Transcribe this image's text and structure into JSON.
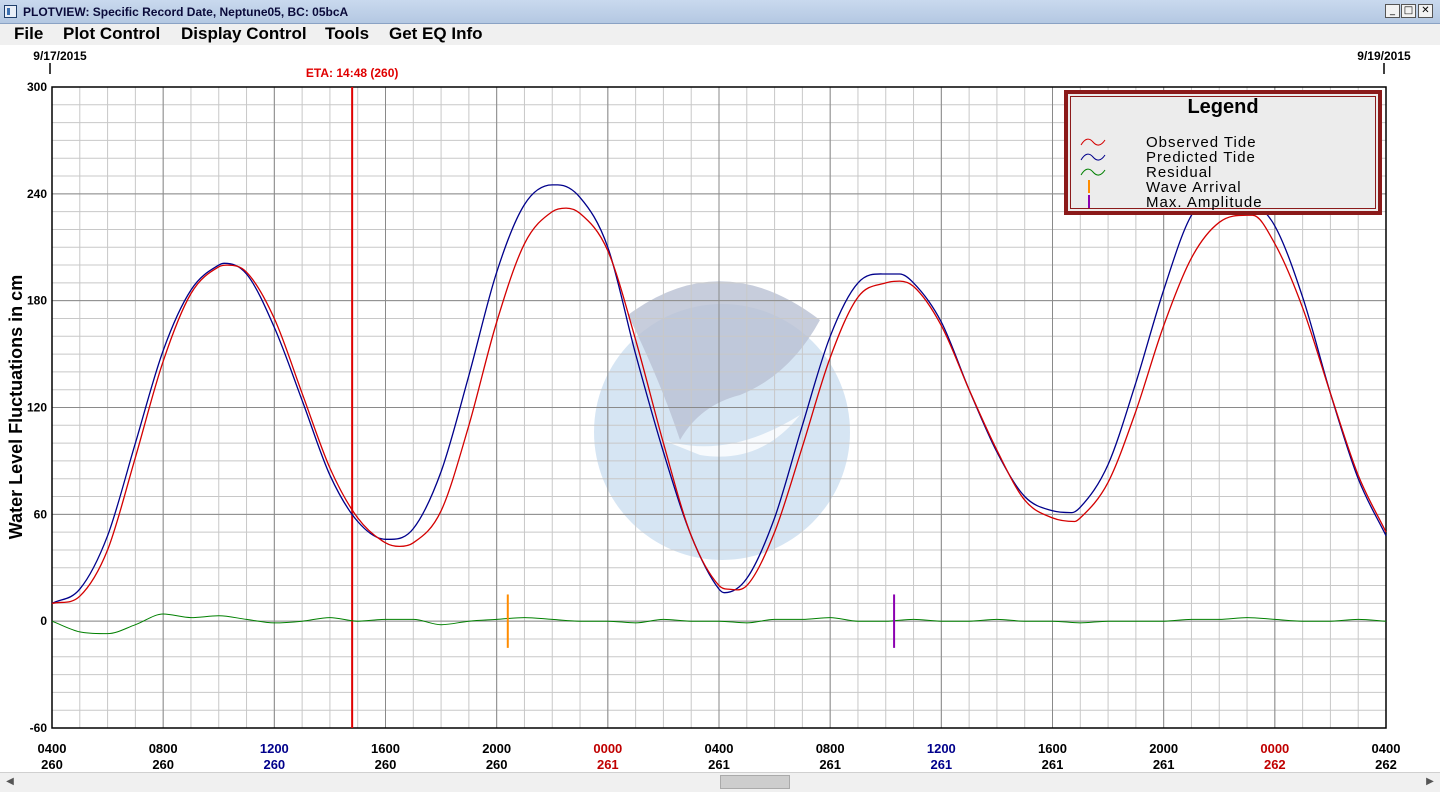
{
  "window": {
    "title": "PLOTVIEW: Specific Record Date, Neptune05, BC: 05bcA",
    "minimize": "_",
    "maximize": "□",
    "close": "✕"
  },
  "menu": [
    "File",
    "Plot Control",
    "Display Control",
    "Tools",
    "Get EQ Info"
  ],
  "scrollbar": {
    "left_arrow": "◀",
    "right_arrow": "▶"
  },
  "colors": {
    "observed": "#d40000",
    "predicted": "#00008b",
    "residual": "#008000",
    "wave_arrival": "#ff8c00",
    "max_amplitude": "#8b00b0",
    "eta_line": "#e00000",
    "day_label_blue": "#00008b",
    "day_label_red": "#c00000",
    "legend_border": "#8b1a1a"
  },
  "chart_data": {
    "type": "line",
    "ylabel": "Water Level Fluctuations in cm",
    "ylim": [
      -60,
      300
    ],
    "yticks": [
      -60,
      0,
      60,
      120,
      180,
      240,
      300
    ],
    "x_unit": "hours from 0400 on day 260",
    "xlim": [
      0,
      48
    ],
    "date_start": "9/17/2015",
    "date_end": "9/19/2015",
    "eta_label": "ETA: 14:48 (260)",
    "eta_x": 10.8,
    "grid": true,
    "xticks": [
      {
        "x": 0,
        "time": "0400",
        "day": "260",
        "color": "black"
      },
      {
        "x": 4,
        "time": "0800",
        "day": "260",
        "color": "black"
      },
      {
        "x": 8,
        "time": "1200",
        "day": "260",
        "color": "blue"
      },
      {
        "x": 12,
        "time": "1600",
        "day": "260",
        "color": "black"
      },
      {
        "x": 16,
        "time": "2000",
        "day": "260",
        "color": "black"
      },
      {
        "x": 20,
        "time": "0000",
        "day": "261",
        "color": "red"
      },
      {
        "x": 24,
        "time": "0400",
        "day": "261",
        "color": "black"
      },
      {
        "x": 28,
        "time": "0800",
        "day": "261",
        "color": "black"
      },
      {
        "x": 32,
        "time": "1200",
        "day": "261",
        "color": "blue"
      },
      {
        "x": 36,
        "time": "1600",
        "day": "261",
        "color": "black"
      },
      {
        "x": 40,
        "time": "2000",
        "day": "261",
        "color": "black"
      },
      {
        "x": 44,
        "time": "0000",
        "day": "262",
        "color": "red"
      },
      {
        "x": 48,
        "time": "0400",
        "day": "262",
        "color": "black"
      }
    ],
    "legend": {
      "title": "Legend",
      "position": "top-right",
      "entries": [
        "Observed Tide",
        "Predicted Tide",
        "Residual",
        "Wave Arrival",
        "Max. Amplitude"
      ]
    },
    "series": [
      {
        "name": "Predicted Tide",
        "x": [
          0,
          1,
          2,
          3,
          4,
          5,
          6,
          6.2,
          7,
          8,
          9,
          10,
          11,
          12,
          12.2,
          13,
          14,
          15,
          16,
          17,
          18,
          18.2,
          19,
          20,
          21,
          22,
          23,
          24,
          24.2,
          25,
          26,
          27,
          28,
          29,
          30,
          30.5,
          31,
          32,
          33,
          34,
          35,
          36,
          36.7,
          37,
          38,
          39,
          40,
          41,
          42,
          42.8,
          43,
          44,
          45,
          46,
          47,
          48
        ],
        "values": [
          10,
          18,
          48,
          100,
          152,
          186,
          200,
          201,
          195,
          165,
          124,
          82,
          56,
          46,
          46,
          52,
          84,
          138,
          196,
          234,
          245,
          245,
          238,
          210,
          150,
          95,
          48,
          18,
          16,
          24,
          58,
          110,
          160,
          190,
          195,
          195,
          190,
          168,
          130,
          95,
          70,
          62,
          61,
          64,
          88,
          134,
          186,
          228,
          240,
          240,
          238,
          222,
          182,
          128,
          80,
          48
        ]
      },
      {
        "name": "Observed Tide",
        "x": [
          0,
          1,
          2,
          3,
          4,
          5,
          6,
          6.3,
          7,
          8,
          9,
          10,
          11,
          12,
          12.5,
          13,
          14,
          15,
          16,
          17,
          18,
          18.5,
          19,
          20,
          21,
          22,
          23,
          24,
          24.3,
          25,
          26,
          27,
          28,
          29,
          30,
          30.5,
          31,
          32,
          33,
          34,
          35,
          36,
          36.8,
          37,
          38,
          39,
          40,
          41,
          42,
          43,
          43.2,
          44,
          45,
          46,
          47,
          48
        ],
        "values": [
          10,
          14,
          40,
          92,
          146,
          184,
          199,
          200,
          196,
          170,
          128,
          86,
          58,
          44,
          42,
          44,
          62,
          110,
          168,
          212,
          230,
          232,
          229,
          208,
          158,
          100,
          48,
          20,
          18,
          20,
          50,
          98,
          148,
          182,
          190,
          191,
          188,
          166,
          130,
          96,
          68,
          58,
          56,
          58,
          78,
          118,
          166,
          204,
          224,
          228,
          228,
          212,
          176,
          128,
          82,
          50
        ]
      },
      {
        "name": "Residual",
        "x": [
          0,
          1,
          2,
          3,
          4,
          5,
          6,
          7,
          8,
          9,
          10,
          11,
          12,
          13,
          14,
          15,
          16,
          17,
          18,
          19,
          20,
          21,
          22,
          23,
          24,
          25,
          26,
          27,
          28,
          29,
          30,
          31,
          32,
          33,
          34,
          35,
          36,
          37,
          38,
          39,
          40,
          41,
          42,
          43,
          44,
          45,
          46,
          47,
          48
        ],
        "values": [
          0,
          -6,
          -7,
          -2,
          4,
          2,
          3,
          1,
          -1,
          0,
          2,
          0,
          1,
          1,
          -2,
          0,
          1,
          2,
          1,
          0,
          0,
          -1,
          1,
          0,
          0,
          -1,
          1,
          1,
          2,
          0,
          0,
          1,
          0,
          0,
          1,
          0,
          0,
          -1,
          0,
          0,
          0,
          1,
          1,
          2,
          1,
          0,
          0,
          1,
          0
        ]
      }
    ],
    "markers": [
      {
        "name": "Wave Arrival",
        "x": 16.4,
        "y_range": [
          -15,
          15
        ]
      },
      {
        "name": "Max. Amplitude",
        "x": 30.3,
        "y_range": [
          -15,
          15
        ]
      }
    ]
  }
}
